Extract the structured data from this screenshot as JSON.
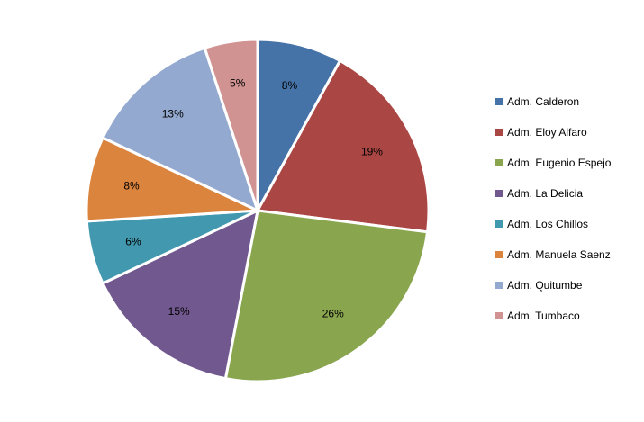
{
  "chart_data": {
    "type": "pie",
    "categories": [
      "Adm. Calderon",
      "Adm. Eloy Alfaro",
      "Adm. Eugenio Espejo",
      "Adm. La Delicia",
      "Adm. Los Chillos",
      "Adm. Manuela Saenz",
      "Adm. Quitumbe",
      "Adm. Tumbaco"
    ],
    "values": [
      8,
      19,
      26,
      15,
      6,
      8,
      13,
      5
    ],
    "labels": [
      "8%",
      "19%",
      "26%",
      "15%",
      "6%",
      "8%",
      "13%",
      "5%"
    ],
    "colors": [
      "#4572A7",
      "#AA4643",
      "#89A54E",
      "#71588F",
      "#4198AF",
      "#DB843D",
      "#93A9CF",
      "#D19392"
    ],
    "unit": "%",
    "legend": "right",
    "start": "top",
    "direction": "clockwise"
  }
}
